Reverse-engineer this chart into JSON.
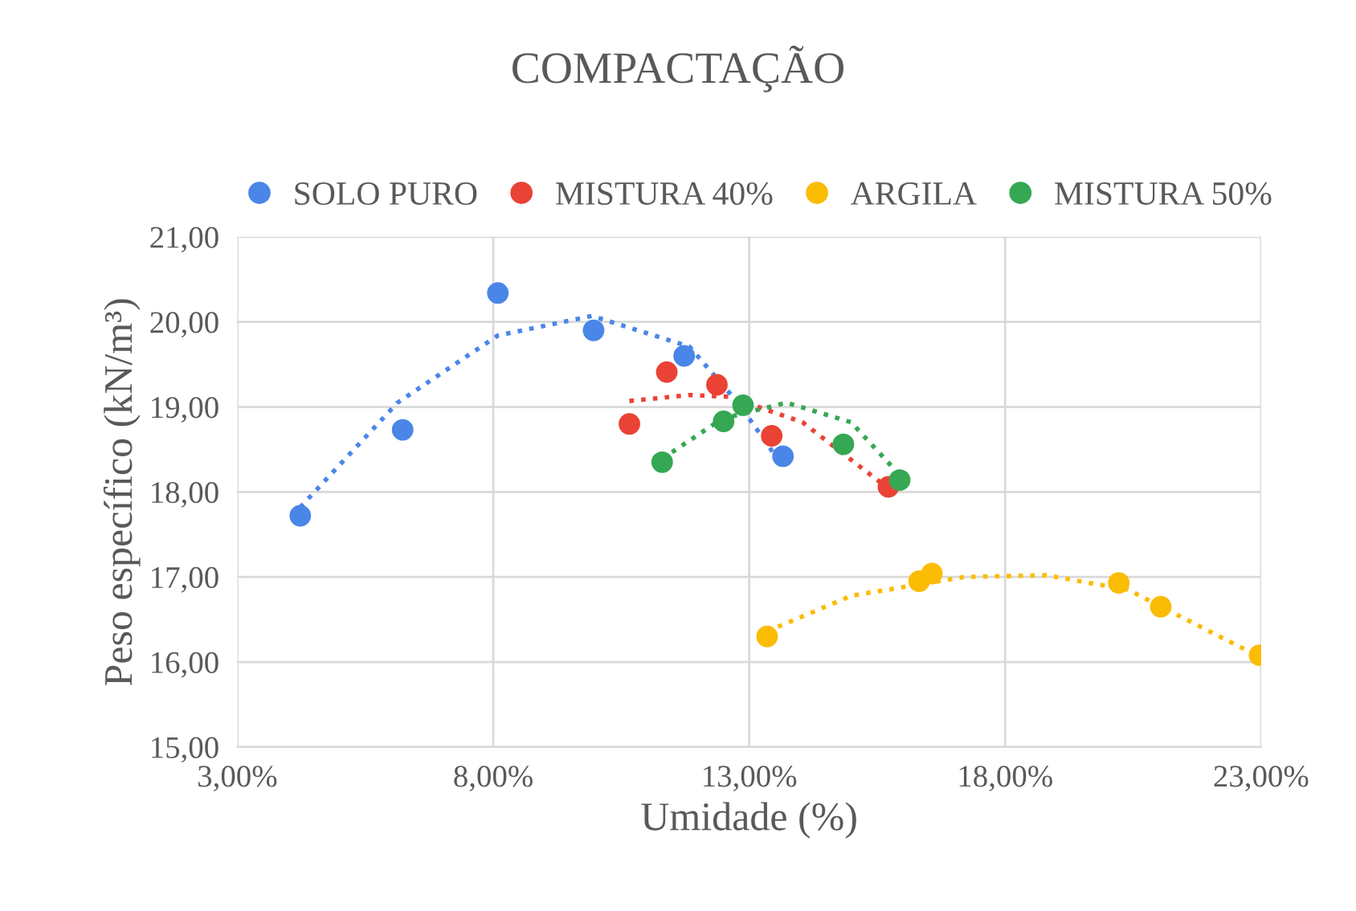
{
  "chart_data": {
    "type": "scatter",
    "title": "COMPACTAÇÃO",
    "xlabel": "Umidade (%)",
    "ylabel": "Peso específico (kN/m³)",
    "xlim": [
      3,
      23
    ],
    "xticks": [
      {
        "value": 3,
        "label": "3,00%"
      },
      {
        "value": 8,
        "label": "8,00%"
      },
      {
        "value": 13,
        "label": "13,00%"
      },
      {
        "value": 18,
        "label": "18,00%"
      },
      {
        "value": 23,
        "label": "23,00%"
      }
    ],
    "ylim": [
      15,
      21
    ],
    "yticks": [
      {
        "value": 15,
        "label": "15,00"
      },
      {
        "value": 16,
        "label": "16,00"
      },
      {
        "value": 17,
        "label": "17,00"
      },
      {
        "value": 18,
        "label": "18,00"
      },
      {
        "value": 19,
        "label": "19,00"
      },
      {
        "value": 20,
        "label": "20,00"
      },
      {
        "value": 21,
        "label": "21,00"
      }
    ],
    "grid": true,
    "legend": "top",
    "marker": "circle",
    "series": [
      {
        "name": "SOLO PURO",
        "color": "#4a86e8",
        "x": [
          4.23,
          6.23,
          8.09,
          9.96,
          11.73,
          13.66
        ],
        "values": [
          17.72,
          18.73,
          20.34,
          19.9,
          19.6,
          18.42
        ]
      },
      {
        "name": "MISTURA 40%",
        "color": "#ea4335",
        "x": [
          10.66,
          11.39,
          12.37,
          13.44,
          15.72
        ],
        "values": [
          18.8,
          19.41,
          19.26,
          18.66,
          18.06
        ]
      },
      {
        "name": "ARGILA",
        "color": "#fbbc04",
        "x": [
          13.35,
          16.32,
          16.57,
          20.22,
          21.04,
          22.97
        ],
        "values": [
          16.3,
          16.95,
          17.04,
          16.93,
          16.65,
          16.08
        ]
      },
      {
        "name": "MISTURA 50%",
        "color": "#34a853",
        "x": [
          11.3,
          12.5,
          12.88,
          14.84,
          15.94
        ],
        "values": [
          18.35,
          18.83,
          19.02,
          18.56,
          18.14
        ]
      },
      {
        "type": "line",
        "color": "#4a86e8",
        "line_style": "dotted",
        "marker": "none",
        "x": [
          4.23,
          6.13,
          8.09,
          9.93,
          11.83,
          12.78,
          13.66
        ],
        "values": [
          17.82,
          19.05,
          19.84,
          20.07,
          19.71,
          19.05,
          18.3
        ]
      },
      {
        "type": "line",
        "color": "#ea4335",
        "line_style": "dotted",
        "marker": "none",
        "x": [
          10.66,
          11.83,
          12.6,
          14.04,
          15.72
        ],
        "values": [
          19.07,
          19.14,
          19.12,
          18.82,
          18.04
        ]
      },
      {
        "type": "line",
        "color": "#fbbc04",
        "line_style": "dotted",
        "marker": "none",
        "x": [
          13.35,
          15.0,
          17.2,
          18.8,
          20.4,
          22.97
        ],
        "values": [
          16.36,
          16.78,
          17.0,
          17.02,
          16.85,
          16.06
        ]
      },
      {
        "type": "line",
        "color": "#34a853",
        "line_style": "dotted",
        "marker": "none",
        "x": [
          11.3,
          12.47,
          13.73,
          14.99,
          15.94
        ],
        "values": [
          18.39,
          18.86,
          19.05,
          18.82,
          18.2
        ]
      }
    ]
  }
}
